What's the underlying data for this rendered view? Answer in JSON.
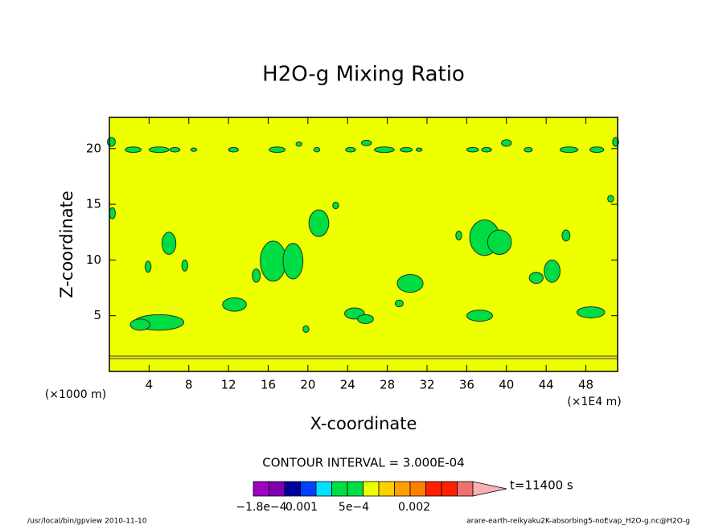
{
  "chart_data": {
    "type": "contour",
    "title": "H2O-g Mixing Ratio",
    "x_label": "X-coordinate",
    "y_label": "Z-coordinate",
    "x_unit": "(×1000 m)",
    "x_unit2": "(×1E4 m)",
    "xlim": [
      0,
      51.2
    ],
    "ylim": [
      0,
      22.8
    ],
    "xticks": [
      4,
      8,
      12,
      16,
      20,
      24,
      28,
      32,
      36,
      40,
      44,
      48
    ],
    "yticks": [
      5,
      10,
      15,
      20
    ],
    "background_color": "#eeff00",
    "region_color": "#00dd44",
    "regions": [
      [
        2.4,
        19.9,
        0.8,
        0.25
      ],
      [
        5.0,
        19.9,
        1.0,
        0.25
      ],
      [
        6.6,
        19.9,
        0.5,
        0.2
      ],
      [
        8.5,
        19.9,
        0.3,
        0.15
      ],
      [
        12.5,
        19.9,
        0.5,
        0.2
      ],
      [
        16.9,
        19.9,
        0.8,
        0.25
      ],
      [
        19.1,
        20.4,
        0.3,
        0.2
      ],
      [
        20.9,
        19.9,
        0.3,
        0.2
      ],
      [
        24.3,
        19.9,
        0.5,
        0.2
      ],
      [
        25.9,
        20.5,
        0.5,
        0.25
      ],
      [
        27.7,
        19.9,
        1.0,
        0.25
      ],
      [
        29.9,
        19.9,
        0.6,
        0.2
      ],
      [
        31.2,
        19.9,
        0.3,
        0.15
      ],
      [
        36.6,
        19.9,
        0.6,
        0.2
      ],
      [
        38.0,
        19.9,
        0.5,
        0.2
      ],
      [
        40.0,
        20.5,
        0.5,
        0.3
      ],
      [
        42.2,
        19.9,
        0.4,
        0.2
      ],
      [
        46.3,
        19.9,
        0.9,
        0.25
      ],
      [
        49.1,
        19.9,
        0.7,
        0.25
      ],
      [
        0.2,
        20.6,
        0.4,
        0.4
      ],
      [
        51.0,
        20.6,
        0.3,
        0.4
      ],
      [
        0.3,
        14.2,
        0.3,
        0.5
      ],
      [
        6.0,
        11.5,
        0.7,
        1.0
      ],
      [
        3.9,
        9.4,
        0.3,
        0.5
      ],
      [
        7.6,
        9.5,
        0.3,
        0.5
      ],
      [
        5.0,
        4.4,
        2.5,
        0.7
      ],
      [
        3.1,
        4.2,
        1.0,
        0.5
      ],
      [
        12.6,
        6.0,
        1.2,
        0.6
      ],
      [
        14.8,
        8.6,
        0.4,
        0.6
      ],
      [
        16.5,
        9.9,
        1.3,
        1.8
      ],
      [
        18.5,
        9.9,
        1.0,
        1.6
      ],
      [
        19.8,
        3.8,
        0.3,
        0.3
      ],
      [
        21.1,
        13.3,
        1.0,
        1.2
      ],
      [
        22.8,
        14.9,
        0.3,
        0.3
      ],
      [
        24.7,
        5.2,
        1.0,
        0.5
      ],
      [
        25.8,
        4.7,
        0.8,
        0.4
      ],
      [
        30.3,
        7.9,
        1.3,
        0.8
      ],
      [
        29.2,
        6.1,
        0.4,
        0.3
      ],
      [
        35.2,
        12.2,
        0.3,
        0.4
      ],
      [
        37.8,
        12.0,
        1.5,
        1.6
      ],
      [
        39.3,
        11.6,
        1.2,
        1.1
      ],
      [
        37.3,
        5.0,
        1.3,
        0.5
      ],
      [
        43.0,
        8.4,
        0.7,
        0.5
      ],
      [
        44.6,
        9.0,
        0.8,
        1.0
      ],
      [
        46.0,
        12.2,
        0.4,
        0.5
      ],
      [
        48.5,
        5.3,
        1.4,
        0.5
      ],
      [
        50.5,
        15.5,
        0.3,
        0.3
      ]
    ],
    "contour_interval": "CONTOUR INTERVAL = 3.000E-04",
    "colorbar_colors": [
      "#a000c0",
      "#8000b0",
      "#0000a0",
      "#0040ff",
      "#00e0ff",
      "#00dd44",
      "#00dd44",
      "#eeff00",
      "#ffd000",
      "#ffa000",
      "#ff8000",
      "#ff2000",
      "#ff2000",
      "#f07070"
    ],
    "colorbar_end_color": "#f8b0b0",
    "colorbar_labels": [
      "−1.8e−4",
      "0.001",
      "5e−4",
      "0.002"
    ],
    "time_label": "t=11400 s",
    "footer_left": "/usr/local/bin/gpview  2010-11-10",
    "footer_right": "arare-earth-reikyaku2K-absorbing5-noEvap_H2O-g.nc@H2O-g"
  }
}
